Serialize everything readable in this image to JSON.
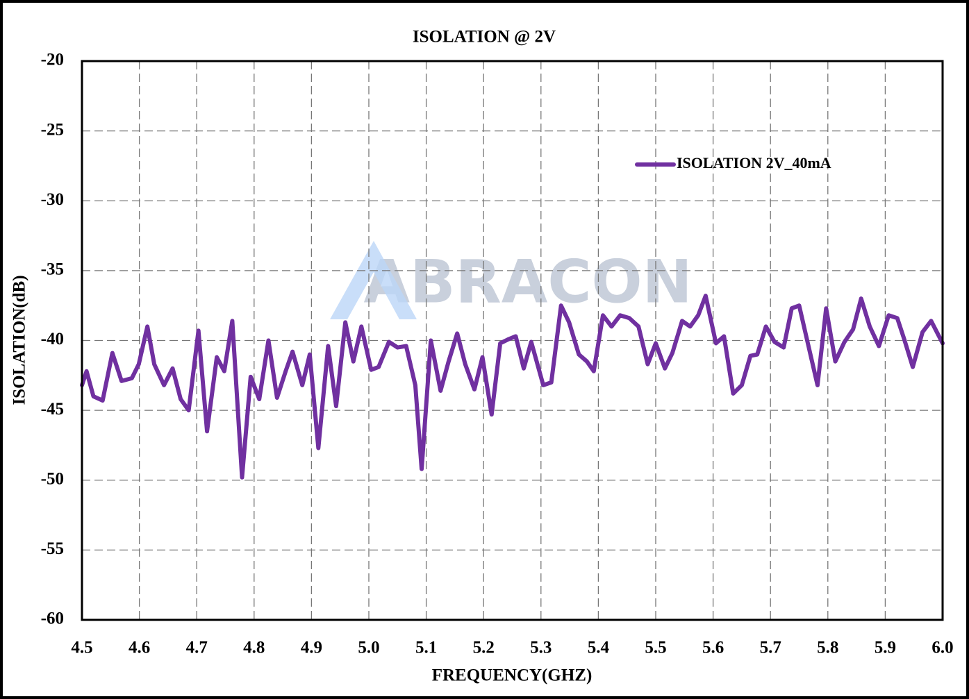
{
  "chart_data": {
    "type": "line",
    "title": "ISOLATION @ 2V",
    "xlabel": "FREQUENCY(GHZ)",
    "ylabel": "ISOLATION(dB)",
    "watermark": "ABRACON",
    "grid": true,
    "legend": "upper right",
    "xlim": [
      4.5,
      6.0
    ],
    "xticks": [
      4.5,
      4.6,
      4.7,
      4.8,
      4.9,
      {
        "value": 5,
        "label": "5.0"
      },
      5.1,
      5.2,
      5.3,
      5.4,
      5.5,
      5.6,
      5.7,
      5.8,
      5.9,
      {
        "value": 6,
        "label": "6.0"
      }
    ],
    "ylim": [
      -60,
      -20
    ],
    "yticks": [
      -20,
      -25,
      -30,
      -35,
      -40,
      -45,
      -50,
      -55,
      -60
    ],
    "x": [
      4.5,
      4.508,
      4.52,
      4.536,
      4.553,
      4.569,
      4.587,
      4.599,
      4.614,
      4.626,
      4.643,
      4.658,
      4.672,
      4.686,
      4.703,
      4.718,
      4.735,
      4.748,
      4.762,
      4.779,
      4.794,
      4.809,
      4.825,
      4.84,
      4.855,
      4.867,
      4.884,
      4.897,
      4.912,
      4.929,
      4.943,
      4.959,
      4.973,
      4.987,
      5.004,
      5.017,
      5.035,
      5.05,
      5.065,
      5.081,
      5.092,
      5.108,
      5.125,
      5.139,
      5.154,
      5.168,
      5.184,
      5.198,
      5.214,
      5.229,
      5.244,
      5.256,
      5.27,
      5.283,
      5.304,
      5.318,
      5.335,
      5.349,
      5.366,
      5.38,
      5.392,
      5.408,
      5.423,
      5.438,
      5.454,
      5.47,
      5.486,
      5.5,
      5.516,
      5.529,
      5.546,
      5.56,
      5.574,
      5.587,
      5.605,
      5.619,
      5.635,
      5.65,
      5.665,
      5.677,
      5.692,
      5.707,
      5.723,
      5.737,
      5.75,
      5.764,
      5.782,
      5.797,
      5.813,
      5.829,
      5.844,
      5.858,
      5.873,
      5.889,
      5.906,
      5.921,
      5.933,
      5.948,
      5.965,
      5.98,
      6.0
    ],
    "series": [
      {
        "name": "ISOLATION 2V_40mA",
        "color": "#7030a0",
        "values": [
          -43.2,
          -42.2,
          -44.0,
          -44.3,
          -40.9,
          -42.9,
          -42.7,
          -41.7,
          -39.0,
          -41.7,
          -43.2,
          -42.0,
          -44.2,
          -45.0,
          -39.3,
          -46.5,
          -41.2,
          -42.2,
          -38.6,
          -49.8,
          -42.6,
          -44.2,
          -40.0,
          -44.1,
          -42.2,
          -40.8,
          -43.2,
          -41.0,
          -47.7,
          -40.4,
          -44.7,
          -38.7,
          -41.5,
          -39.0,
          -42.1,
          -41.9,
          -40.1,
          -40.5,
          -40.4,
          -43.2,
          -49.2,
          -40.0,
          -43.6,
          -41.5,
          -39.5,
          -41.7,
          -43.5,
          -41.2,
          -45.3,
          -40.2,
          -39.9,
          -39.7,
          -42.0,
          -40.1,
          -43.2,
          -43.0,
          -37.5,
          -38.7,
          -41.0,
          -41.5,
          -42.2,
          -38.2,
          -39.0,
          -38.2,
          -38.4,
          -39.0,
          -41.7,
          -40.2,
          -42.0,
          -40.9,
          -38.6,
          -39.0,
          -38.2,
          -36.8,
          -40.2,
          -39.7,
          -43.8,
          -43.2,
          -41.1,
          -41.0,
          -39.0,
          -40.1,
          -40.5,
          -37.7,
          -37.5,
          -40.0,
          -43.2,
          -37.7,
          -41.5,
          -40.1,
          -39.2,
          -37.0,
          -39.0,
          -40.4,
          -38.2,
          -38.4,
          -39.9,
          -41.9,
          -39.4,
          -38.6,
          -40.2
        ]
      }
    ]
  }
}
